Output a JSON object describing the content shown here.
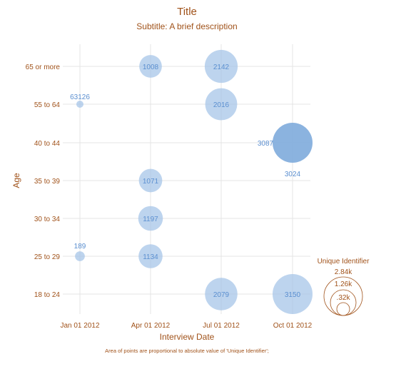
{
  "chart_data": {
    "type": "scatter",
    "title": "Title",
    "subtitle": "Subtitle: A brief description",
    "xlabel": "Interview Date",
    "ylabel": "Age",
    "x_categories": [
      "Jan 01 2012",
      "Apr 01 2012",
      "Jul 01 2012",
      "Oct 01 2012"
    ],
    "y_categories": [
      "18 to 24",
      "25 to 29",
      "30 to 34",
      "35 to 39",
      "40 to 44",
      "55 to 64",
      "65 or more"
    ],
    "points": [
      {
        "x": "Jan 01 2012",
        "y": "55 to 64",
        "value": 63126
      },
      {
        "x": "Jan 01 2012",
        "y": "25 to 29",
        "value": 189
      },
      {
        "x": "Apr 01 2012",
        "y": "65 or more",
        "value": 1008
      },
      {
        "x": "Apr 01 2012",
        "y": "35 to 39",
        "value": 1071
      },
      {
        "x": "Apr 01 2012",
        "y": "30 to 34",
        "value": 1197
      },
      {
        "x": "Apr 01 2012",
        "y": "25 to 29",
        "value": 1134
      },
      {
        "x": "Jul 01 2012",
        "y": "65 or more",
        "value": 2142
      },
      {
        "x": "Jul 01 2012",
        "y": "55 to 64",
        "value": 2016
      },
      {
        "x": "Jul 01 2012",
        "y": "18 to 24",
        "value": 2079
      },
      {
        "x": "Oct 01 2012",
        "y": "40 to 44",
        "value": 3087
      },
      {
        "x": "Oct 01 2012",
        "y": "40 to 44",
        "value": 3024
      },
      {
        "x": "Oct 01 2012",
        "y": "18 to 24",
        "value": 3150
      }
    ],
    "size_legend": {
      "title": "Unique Identifier",
      "entries": [
        "2.84k",
        "1.26k",
        ".32k"
      ],
      "placement": "right"
    },
    "footnote": "Area of points are proportional to absolute value of 'Unique Identifier';",
    "grid": true,
    "colors": {
      "bubble": "#a7c6e8",
      "bubble_dark": "#7eabdc",
      "value_label": "#5b8fd0",
      "text": "#a0521a",
      "grid": "#e4e4e4"
    }
  }
}
